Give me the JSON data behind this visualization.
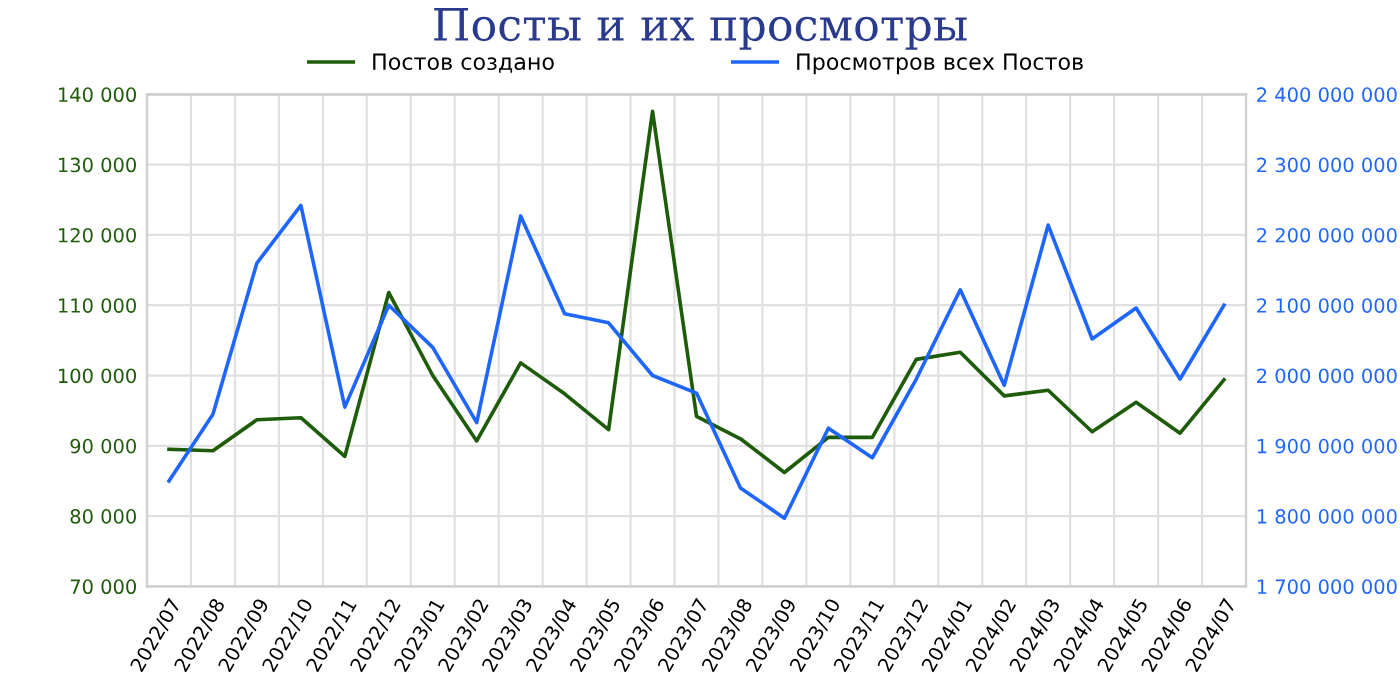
{
  "chart_data": {
    "type": "line",
    "title": "Посты и их просмотры",
    "categories": [
      "2022/07",
      "2022/08",
      "2022/09",
      "2022/10",
      "2022/11",
      "2022/12",
      "2023/01",
      "2023/02",
      "2023/03",
      "2023/04",
      "2023/05",
      "2023/06",
      "2023/07",
      "2023/08",
      "2023/09",
      "2023/10",
      "2023/11",
      "2023/12",
      "2024/01",
      "2024/02",
      "2024/03",
      "2024/04",
      "2024/05",
      "2024/06",
      "2024/07"
    ],
    "series": [
      {
        "name": "Постов создано",
        "color": "#1e5c0a",
        "values": [
          89500,
          89300,
          93700,
          94000,
          88500,
          111800,
          100000,
          90700,
          101800,
          97400,
          92300,
          137600,
          94200,
          91000,
          86200,
          91200,
          91200,
          102300,
          103300,
          97100,
          97900,
          92000,
          96200,
          91800,
          99400
        ]
      },
      {
        "name": "Просмотров всех Постов",
        "color": "#1f66ff",
        "axis": "y2",
        "values": [
          1850000000,
          1945000000,
          2160000000,
          2242000000,
          1955000000,
          2100000000,
          2040000000,
          1933000000,
          2227000000,
          2088000000,
          2075000000,
          2000000000,
          1975000000,
          1840000000,
          1797000000,
          1925000000,
          1883000000,
          1995000000,
          2122000000,
          1986000000,
          2214000000,
          2052000000,
          2096000000,
          1995000000,
          2100000000
        ]
      }
    ],
    "ylim": [
      70000,
      140000
    ],
    "yticks": [
      {
        "value": 70000,
        "label": "70 000"
      },
      {
        "value": 80000,
        "label": "80 000"
      },
      {
        "value": 90000,
        "label": "90 000"
      },
      {
        "value": 100000,
        "label": "100 000"
      },
      {
        "value": 110000,
        "label": "110 000"
      },
      {
        "value": 120000,
        "label": "120 000"
      },
      {
        "value": 130000,
        "label": "130 000"
      },
      {
        "value": 140000,
        "label": "140 000"
      }
    ],
    "y2lim": [
      1700000000,
      2400000000
    ],
    "y2ticks": [
      {
        "value": 1700000000,
        "label": "1 700 000 000"
      },
      {
        "value": 1800000000,
        "label": "1 800 000 000"
      },
      {
        "value": 1900000000,
        "label": "1 900 000 000"
      },
      {
        "value": 2000000000,
        "label": "2 000 000 000"
      },
      {
        "value": 2100000000,
        "label": "2 100 000 000"
      },
      {
        "value": 2200000000,
        "label": "2 200 000 000"
      },
      {
        "value": 2300000000,
        "label": "2 300 000 000"
      },
      {
        "value": 2400000000,
        "label": "2 400 000 000"
      }
    ],
    "grid": true,
    "legend": "top",
    "marker": "none",
    "line_style": "solid"
  }
}
